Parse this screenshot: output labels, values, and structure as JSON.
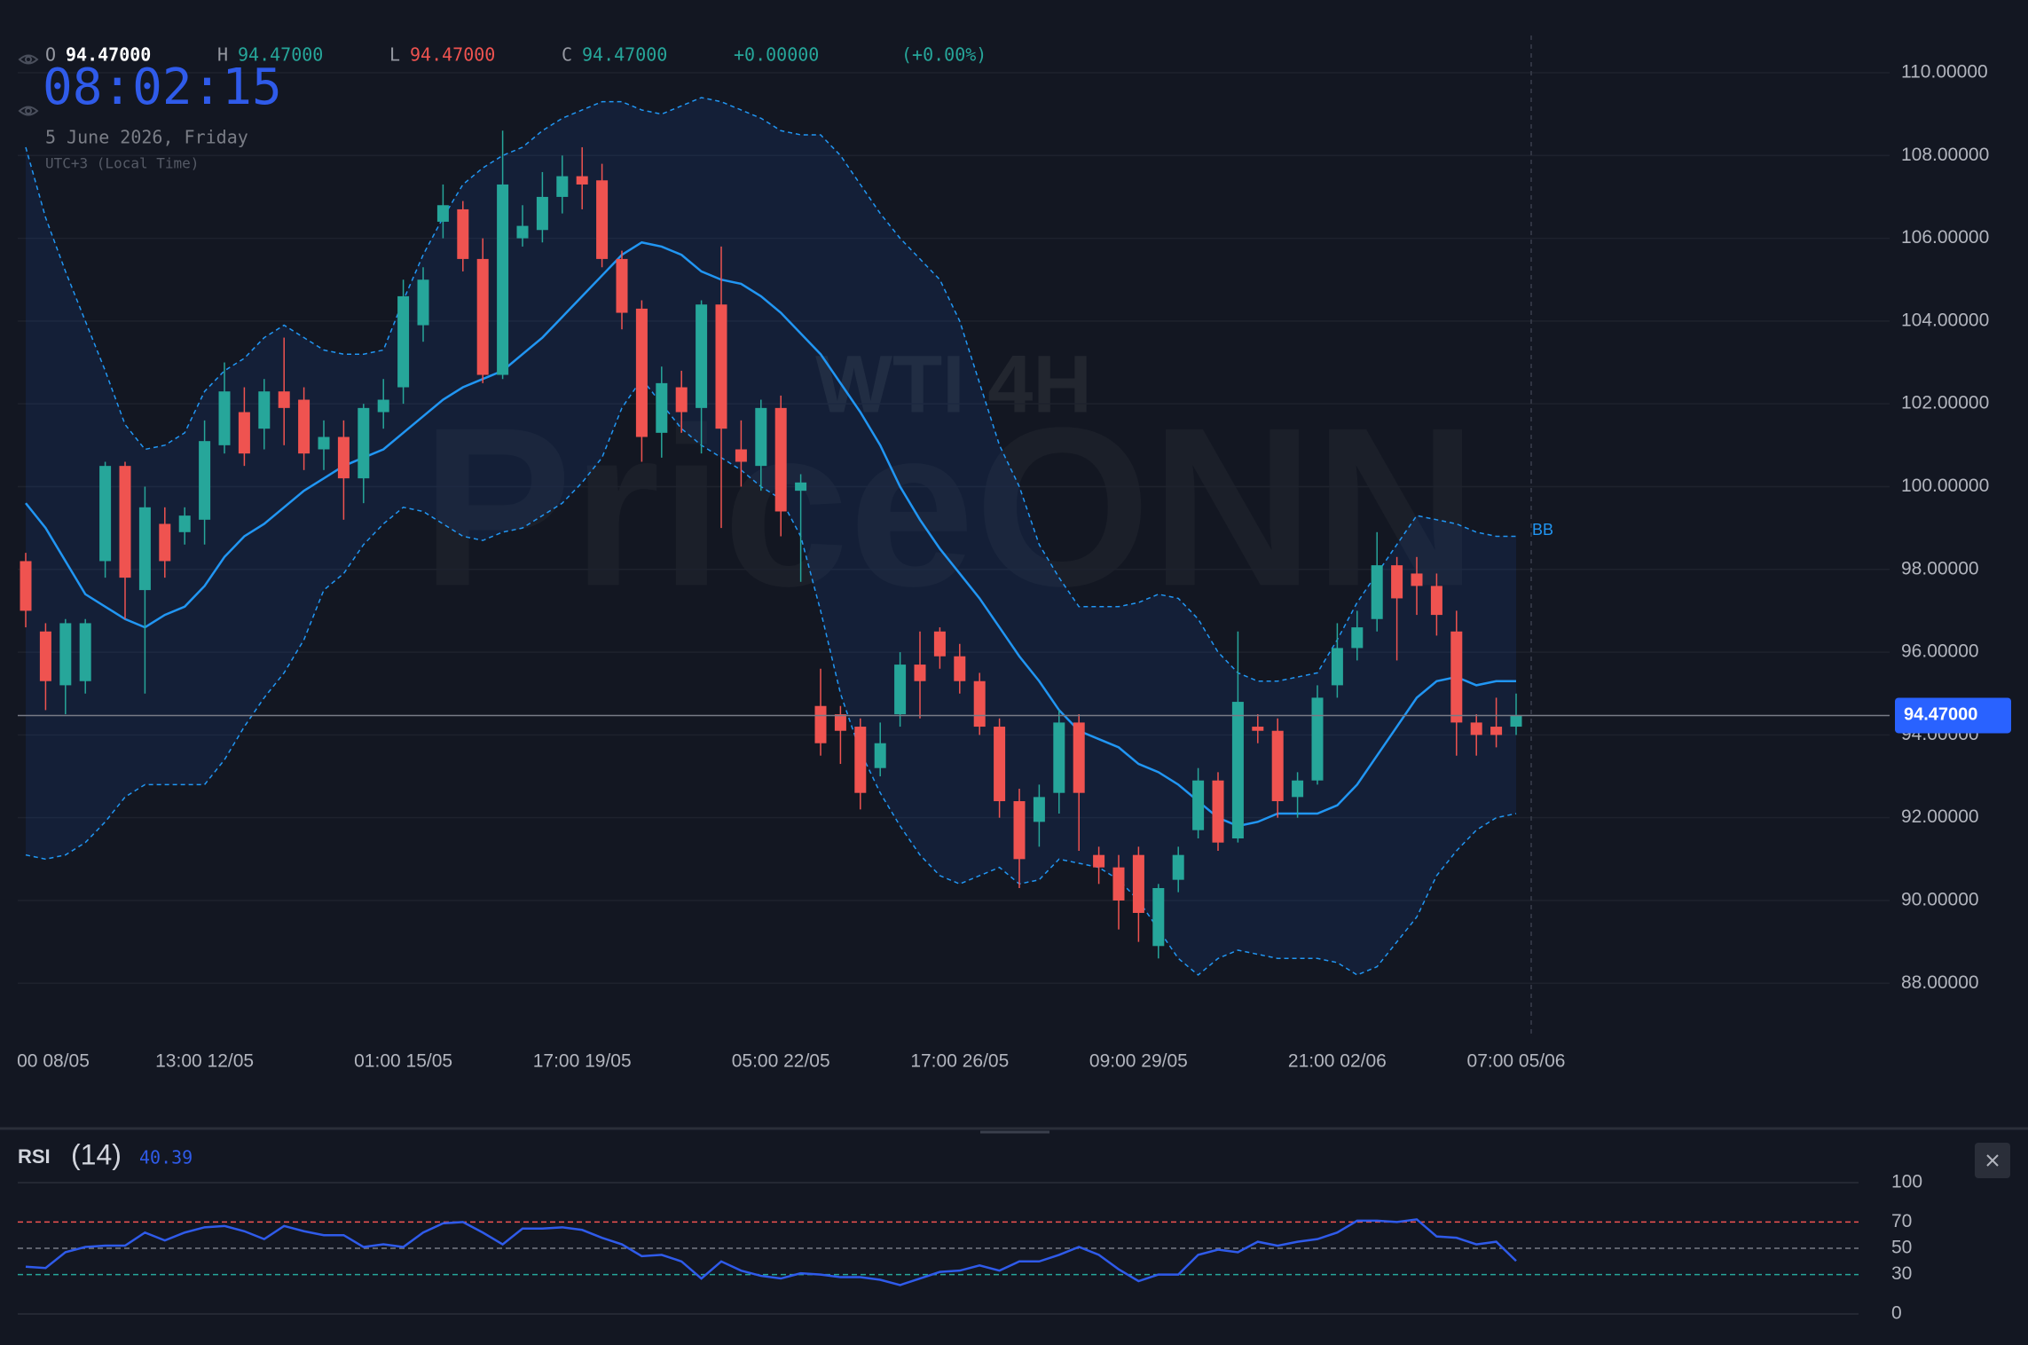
{
  "header": {
    "ohlc": [
      {
        "key": "O",
        "value": "94.47000"
      },
      {
        "key": "H",
        "value": "94.47000"
      },
      {
        "key": "L",
        "value": "94.47000"
      },
      {
        "key": "C",
        "value": "94.47000"
      }
    ],
    "change": "+0.00000",
    "change_pct": "(+0.00%)",
    "clock": "08:02:15",
    "date": "5 June 2026, Friday",
    "timezone": "UTC+3 (Local Time)"
  },
  "chart_data": [
    {
      "type": "candlestick",
      "watermark": [
        "WTI 4H",
        "PriceONN"
      ],
      "categories": [
        null,
        "00 08/05",
        null,
        null,
        null,
        null,
        null,
        null,
        null,
        "13:00 12/05",
        null,
        null,
        null,
        null,
        null,
        null,
        null,
        null,
        null,
        "01:00 15/05",
        null,
        null,
        null,
        null,
        null,
        null,
        null,
        null,
        "17:00 19/05",
        null,
        null,
        null,
        null,
        null,
        null,
        null,
        null,
        null,
        "05:00 22/05",
        null,
        null,
        null,
        null,
        null,
        null,
        null,
        null,
        "17:00 26/05",
        null,
        null,
        null,
        null,
        null,
        null,
        null,
        null,
        "09:00 29/05",
        null,
        null,
        null,
        null,
        null,
        null,
        null,
        null,
        null,
        "21:00 02/06",
        null,
        null,
        null,
        null,
        null,
        null,
        null,
        null,
        "07:00 05/06"
      ],
      "open": [
        98.2,
        96.5,
        95.2,
        95.3,
        98.2,
        100.5,
        97.5,
        99.1,
        98.9,
        99.2,
        101.0,
        101.8,
        101.4,
        102.3,
        102.1,
        100.9,
        101.2,
        100.2,
        101.8,
        102.4,
        103.9,
        106.4,
        106.7,
        105.5,
        102.7,
        106.0,
        106.2,
        107.0,
        107.5,
        107.4,
        105.5,
        104.3,
        101.3,
        102.4,
        101.9,
        104.4,
        100.9,
        100.5,
        101.9,
        99.9,
        94.7,
        94.5,
        94.2,
        93.2,
        94.5,
        95.7,
        96.5,
        95.9,
        95.3,
        94.2,
        92.4,
        91.9,
        92.6,
        94.3,
        91.1,
        90.8,
        91.1,
        88.9,
        90.5,
        91.7,
        92.9,
        91.5,
        94.2,
        94.1,
        92.5,
        92.9,
        95.2,
        96.1,
        96.8,
        98.1,
        97.9,
        97.6,
        96.5,
        94.3,
        94.2,
        94.2
      ],
      "high": [
        98.4,
        96.7,
        96.8,
        96.8,
        100.6,
        100.6,
        100.0,
        99.5,
        99.5,
        101.6,
        103.0,
        102.4,
        102.6,
        103.6,
        102.4,
        101.6,
        101.6,
        102.0,
        102.6,
        105.0,
        105.3,
        107.3,
        106.9,
        106.0,
        108.6,
        106.8,
        107.6,
        108.0,
        108.2,
        107.8,
        105.7,
        104.5,
        102.9,
        102.8,
        104.5,
        105.8,
        101.6,
        102.1,
        102.2,
        100.3,
        95.6,
        94.7,
        94.4,
        94.3,
        96.0,
        96.5,
        96.6,
        96.2,
        95.5,
        94.4,
        92.7,
        92.8,
        94.6,
        94.5,
        91.3,
        91.1,
        91.3,
        90.4,
        91.3,
        93.2,
        93.1,
        96.5,
        94.5,
        94.4,
        93.1,
        95.2,
        96.7,
        97.0,
        98.9,
        98.3,
        98.3,
        97.9,
        97.0,
        94.5,
        94.9,
        95.0
      ],
      "low": [
        96.6,
        94.6,
        94.5,
        95.0,
        97.8,
        96.8,
        95.0,
        97.8,
        98.6,
        98.6,
        100.8,
        100.5,
        100.9,
        101.0,
        100.4,
        100.4,
        99.2,
        99.6,
        101.4,
        102.0,
        103.5,
        106.0,
        105.2,
        102.5,
        102.6,
        105.8,
        105.9,
        106.6,
        106.7,
        105.3,
        103.8,
        100.6,
        100.7,
        101.3,
        100.8,
        99.0,
        100.0,
        99.9,
        98.8,
        97.7,
        93.5,
        93.3,
        92.2,
        93.0,
        94.2,
        94.4,
        95.6,
        95.0,
        94.0,
        92.0,
        90.3,
        91.3,
        92.1,
        91.2,
        90.4,
        89.3,
        89.0,
        88.6,
        90.2,
        91.5,
        91.2,
        91.4,
        93.8,
        92.0,
        92.0,
        92.8,
        94.9,
        95.8,
        96.5,
        95.8,
        96.9,
        96.4,
        93.5,
        93.5,
        93.7,
        94.0
      ],
      "close": [
        97.0,
        95.3,
        96.7,
        96.7,
        100.5,
        97.8,
        99.5,
        98.2,
        99.3,
        101.1,
        102.3,
        100.8,
        102.3,
        101.9,
        100.8,
        101.2,
        100.2,
        101.9,
        102.1,
        104.6,
        105.0,
        106.8,
        105.5,
        102.7,
        107.3,
        106.3,
        107.0,
        107.5,
        107.3,
        105.5,
        104.2,
        101.2,
        102.5,
        101.8,
        104.4,
        101.4,
        100.6,
        101.9,
        99.4,
        100.1,
        93.8,
        94.1,
        92.6,
        93.8,
        95.7,
        95.3,
        95.9,
        95.3,
        94.2,
        92.4,
        91.0,
        92.5,
        94.3,
        92.6,
        90.8,
        90.0,
        89.7,
        90.3,
        91.1,
        92.9,
        91.4,
        94.8,
        94.1,
        92.4,
        92.9,
        94.9,
        96.1,
        96.6,
        98.1,
        97.3,
        97.6,
        96.9,
        94.3,
        94.0,
        94.0,
        94.47
      ],
      "colors": {
        "up": "#26a69a",
        "down": "#ef5350"
      },
      "bands": {
        "name": "BB",
        "color": "#2196f3",
        "upper": [
          108.2,
          106.5,
          105.2,
          104.0,
          102.8,
          101.5,
          100.9,
          101.0,
          101.3,
          102.3,
          102.8,
          103.1,
          103.6,
          103.9,
          103.6,
          103.3,
          103.2,
          103.2,
          103.3,
          104.5,
          105.6,
          106.5,
          107.3,
          107.7,
          108.0,
          108.2,
          108.6,
          108.9,
          109.1,
          109.3,
          109.3,
          109.1,
          109.0,
          109.2,
          109.4,
          109.3,
          109.1,
          108.9,
          108.6,
          108.5,
          108.5,
          108.0,
          107.3,
          106.6,
          106.0,
          105.5,
          105.0,
          104.0,
          102.5,
          101.0,
          100.0,
          98.6,
          97.8,
          97.1,
          97.1,
          97.1,
          97.2,
          97.4,
          97.3,
          96.8,
          96.0,
          95.5,
          95.3,
          95.3,
          95.4,
          95.5,
          96.3,
          97.2,
          97.9,
          98.6,
          99.3,
          99.2,
          99.1,
          98.9,
          98.8,
          98.8
        ],
        "middle": [
          99.6,
          99.0,
          98.2,
          97.4,
          97.1,
          96.8,
          96.6,
          96.9,
          97.1,
          97.6,
          98.3,
          98.8,
          99.1,
          99.5,
          99.9,
          100.2,
          100.5,
          100.7,
          100.9,
          101.3,
          101.7,
          102.1,
          102.4,
          102.6,
          102.8,
          103.2,
          103.6,
          104.1,
          104.6,
          105.1,
          105.6,
          105.9,
          105.8,
          105.6,
          105.2,
          105.0,
          104.9,
          104.6,
          104.2,
          103.7,
          103.2,
          102.5,
          101.8,
          101.0,
          100.0,
          99.2,
          98.5,
          97.9,
          97.3,
          96.6,
          95.9,
          95.3,
          94.6,
          94.1,
          93.9,
          93.7,
          93.3,
          93.1,
          92.8,
          92.4,
          92.0,
          91.8,
          91.9,
          92.1,
          92.1,
          92.1,
          92.3,
          92.8,
          93.5,
          94.2,
          94.9,
          95.3,
          95.4,
          95.2,
          95.3,
          95.3
        ],
        "lower": [
          91.1,
          91.0,
          91.1,
          91.4,
          91.9,
          92.5,
          92.8,
          92.8,
          92.8,
          92.8,
          93.4,
          94.2,
          94.9,
          95.5,
          96.3,
          97.5,
          97.9,
          98.6,
          99.1,
          99.5,
          99.4,
          99.1,
          98.8,
          98.7,
          98.9,
          99.0,
          99.3,
          99.6,
          100.1,
          100.7,
          101.9,
          102.6,
          102.0,
          101.4,
          101.0,
          100.7,
          100.4,
          100.0,
          99.7,
          98.8,
          97.0,
          95.0,
          93.6,
          92.6,
          91.8,
          91.1,
          90.6,
          90.4,
          90.6,
          90.8,
          90.4,
          90.5,
          91.0,
          90.9,
          90.8,
          90.5,
          90.0,
          89.3,
          88.6,
          88.2,
          88.6,
          88.8,
          88.7,
          88.6,
          88.6,
          88.6,
          88.5,
          88.2,
          88.4,
          89.0,
          89.6,
          90.6,
          91.2,
          91.7,
          92.0,
          92.1
        ]
      },
      "ylim": [
        86.6,
        110.9
      ],
      "yticks": [
        {
          "value": 88,
          "label": "88.00000"
        },
        {
          "value": 90,
          "label": "90.00000"
        },
        {
          "value": 92,
          "label": "92.00000"
        },
        {
          "value": 94,
          "label": "94.00000"
        },
        {
          "value": 96,
          "label": "96.00000"
        },
        {
          "value": 98,
          "label": "98.00000"
        },
        {
          "value": 100,
          "label": "100.00000"
        },
        {
          "value": 102,
          "label": "102.00000"
        },
        {
          "value": 104,
          "label": "104.00000"
        },
        {
          "value": 106,
          "label": "106.00000"
        },
        {
          "value": 108,
          "label": "108.00000"
        },
        {
          "value": 110,
          "label": "110.00000"
        }
      ],
      "grid": true,
      "last_price": {
        "value": 94.47,
        "label": "94.47000"
      }
    },
    {
      "type": "line",
      "title": "RSI",
      "subtitle": "(14)",
      "color": "#2f5bea",
      "values": [
        36,
        35,
        47,
        51,
        52,
        52,
        62,
        56,
        62,
        66,
        67,
        63,
        57,
        67,
        63,
        60,
        60,
        51,
        53,
        51,
        62,
        69,
        70,
        62,
        53,
        65,
        65,
        66,
        64,
        58,
        53,
        44,
        45,
        40,
        27,
        40,
        33,
        29,
        27,
        31,
        30,
        28,
        28,
        26,
        22,
        27,
        32,
        33,
        37,
        33,
        40,
        40,
        45,
        51,
        45,
        34,
        25,
        30,
        30,
        45,
        49,
        47,
        55,
        52,
        55,
        57,
        62,
        71,
        71,
        70,
        72,
        59,
        58,
        53,
        55,
        40.39
      ],
      "ylim": [
        0,
        100
      ],
      "yticks": [
        0,
        30,
        50,
        70,
        100
      ],
      "tick_colors": [
        "#2a2e39",
        "#26a69a",
        "#787b86",
        "#ef5350",
        "#2a2e39"
      ],
      "tick_dashed": [
        false,
        true,
        true,
        true,
        false
      ]
    }
  ]
}
